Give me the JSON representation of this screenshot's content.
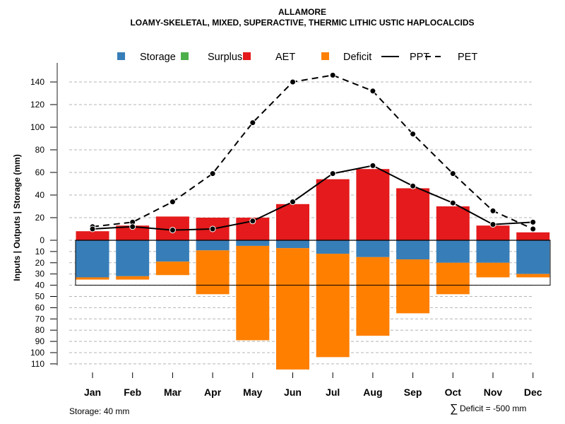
{
  "chart_data": {
    "type": "bar",
    "title": "ALLAMORE",
    "subtitle": "LOAMY-SKELETAL, MIXED, SUPERACTIVE, THERMIC LITHIC USTIC HAPLOCALCIDS",
    "ylabel": "Inputs | Outputs | Storage    (mm)",
    "xlabel": "",
    "categories": [
      "Jan",
      "Feb",
      "Mar",
      "Apr",
      "May",
      "Jun",
      "Jul",
      "Aug",
      "Sep",
      "Oct",
      "Nov",
      "Dec"
    ],
    "ylim_positive": [
      0,
      140
    ],
    "ylim_negative": [
      0,
      110
    ],
    "yticks_positive": [
      0,
      20,
      40,
      60,
      80,
      100,
      120,
      140
    ],
    "yticks_negative": [
      10,
      20,
      30,
      40,
      50,
      60,
      70,
      80,
      90,
      100,
      110
    ],
    "grid": true,
    "legend_position": "top",
    "legend": [
      {
        "label": "Storage",
        "kind": "swatch",
        "color": "#377EB8"
      },
      {
        "label": "Surplus",
        "kind": "swatch",
        "color": "#4DAF4A"
      },
      {
        "label": "AET",
        "kind": "swatch",
        "color": "#E41A1C"
      },
      {
        "label": "Deficit",
        "kind": "swatch",
        "color": "#FF7F00"
      },
      {
        "label": "PPT",
        "kind": "solid-line",
        "color": "#000000"
      },
      {
        "label": "PET",
        "kind": "dashed-line",
        "color": "#000000"
      }
    ],
    "series": [
      {
        "name": "AET",
        "direction": "up",
        "color": "#E41A1C",
        "values": [
          8,
          13,
          21,
          20,
          20,
          32,
          54,
          63,
          46,
          30,
          13,
          7
        ]
      },
      {
        "name": "Surplus",
        "direction": "up",
        "color": "#4DAF4A",
        "values": [
          0,
          0,
          0,
          0,
          0,
          0,
          0,
          0,
          0,
          0,
          0,
          0
        ]
      },
      {
        "name": "Storage",
        "direction": "down",
        "color": "#377EB8",
        "values": [
          33,
          32,
          19,
          9,
          5,
          7,
          12,
          15,
          17,
          20,
          20,
          30
        ]
      },
      {
        "name": "Deficit",
        "direction": "down",
        "color": "#FF7F00",
        "values": [
          2,
          3,
          12,
          39,
          84,
          108,
          92,
          70,
          48,
          28,
          13,
          3
        ]
      },
      {
        "name": "PPT",
        "type": "line",
        "style": "solid",
        "color": "#000000",
        "values": [
          10,
          12,
          9,
          10,
          17,
          34,
          59,
          66,
          48,
          33,
          14,
          16
        ]
      },
      {
        "name": "PET",
        "type": "line",
        "style": "dashed",
        "color": "#000000",
        "values": [
          12,
          16,
          34,
          59,
          104,
          140,
          146,
          132,
          94,
          59,
          26,
          10
        ]
      }
    ],
    "storage_capacity_mm": 40,
    "annotations": {
      "storage": "Storage: 40 mm",
      "deficit_sum": "Deficit = -500 mm",
      "deficit_symbol": "∑"
    }
  }
}
